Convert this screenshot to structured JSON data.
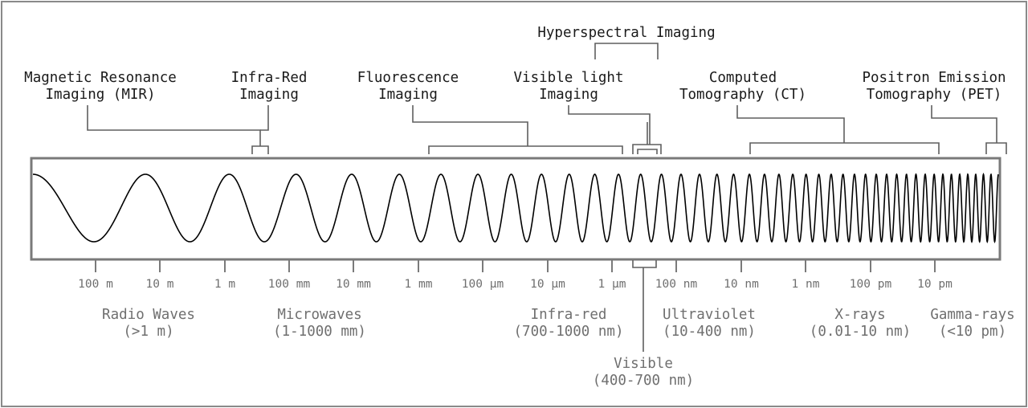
{
  "techniques": [
    {
      "id": "hyperspectral",
      "lines": [
        "Hyperspectral Imaging"
      ]
    },
    {
      "id": "mri",
      "lines": [
        "Magnetic Resonance",
        "Imaging (MIR)"
      ]
    },
    {
      "id": "infrared",
      "lines": [
        "Infra-Red",
        "Imaging"
      ]
    },
    {
      "id": "fluorescence",
      "lines": [
        "Fluorescence",
        "Imaging"
      ]
    },
    {
      "id": "visible",
      "lines": [
        "Visible light",
        "Imaging"
      ]
    },
    {
      "id": "ct",
      "lines": [
        "Computed",
        "Tomography (CT)"
      ]
    },
    {
      "id": "pet",
      "lines": [
        "Positron Emission",
        "Tomography (PET)"
      ]
    }
  ],
  "scale_ticks": [
    "100 m",
    "10 m",
    "1 m",
    "100 mm",
    "10 mm",
    "1 mm",
    "100 µm",
    "10 µm",
    "1 µm",
    "100 nm",
    "10 nm",
    "1 nm",
    "100 pm",
    "10 pm"
  ],
  "bands": [
    {
      "id": "radio",
      "name": "Radio Waves",
      "range": "(>1 m)"
    },
    {
      "id": "microwaves",
      "name": "Microwaves",
      "range": "(1-1000 mm)"
    },
    {
      "id": "infrared",
      "name": "Infra-red",
      "range": "(700-1000 nm)"
    },
    {
      "id": "ultraviolet",
      "name": "Ultraviolet",
      "range": "(10-400 nm)"
    },
    {
      "id": "xrays",
      "name": "X-rays",
      "range": "(0.01-10 nm)"
    },
    {
      "id": "gamma",
      "name": "Gamma-rays",
      "range": "(<10 pm)"
    },
    {
      "id": "visible",
      "name": "Visible",
      "range": "(400-700 nm)"
    }
  ],
  "colors": {
    "label": "#1a1a1a",
    "scale": "#6f6f6f",
    "bracket": "#5f5f5f",
    "frame": "#7a7a7a",
    "wave": "#000000"
  }
}
